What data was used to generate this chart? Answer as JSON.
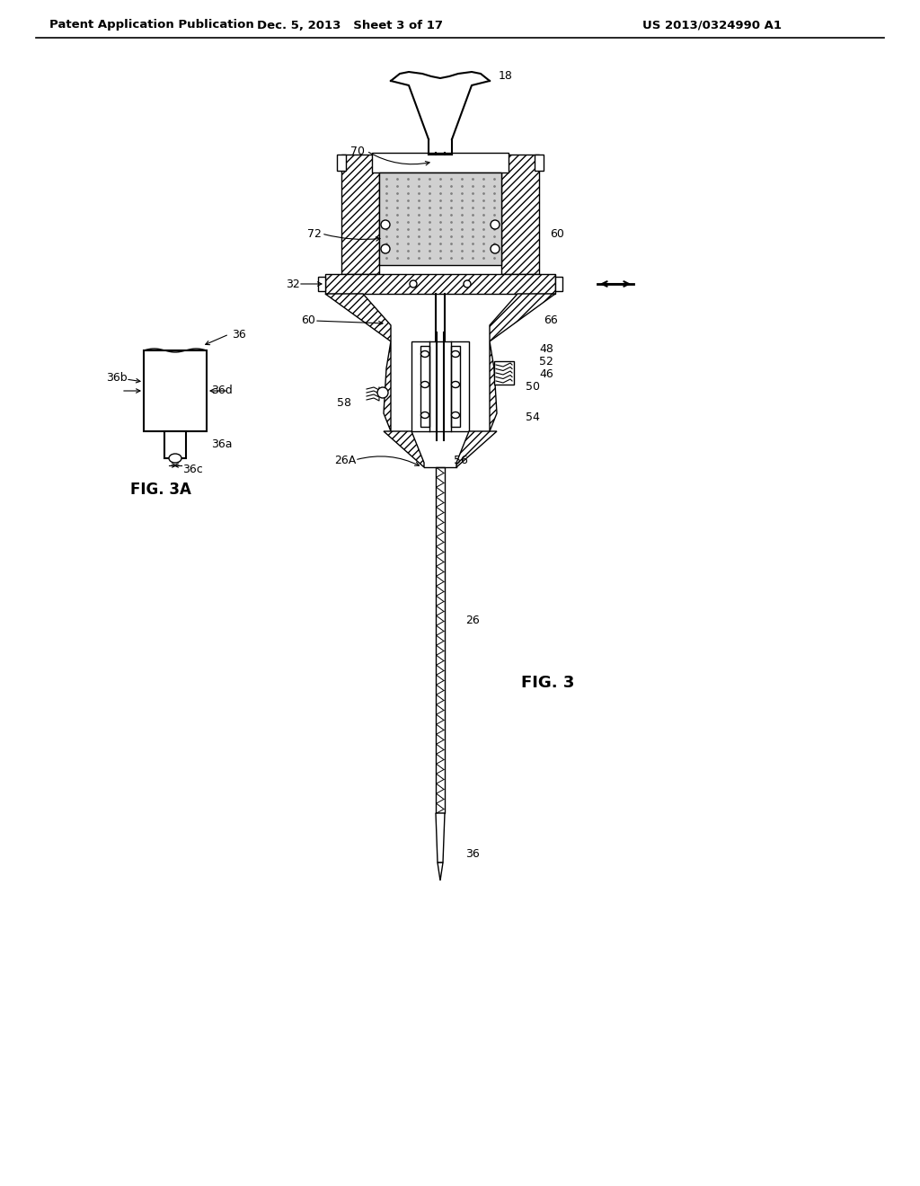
{
  "background_color": "#ffffff",
  "header_left": "Patent Application Publication",
  "header_center": "Dec. 5, 2013   Sheet 3 of 17",
  "header_right": "US 2013/0324990 A1",
  "fig3_label": "FIG. 3",
  "fig3a_label": "FIG. 3A",
  "text_color": "#000000",
  "line_color": "#000000",
  "dotted_fill": "#d0d0d0"
}
